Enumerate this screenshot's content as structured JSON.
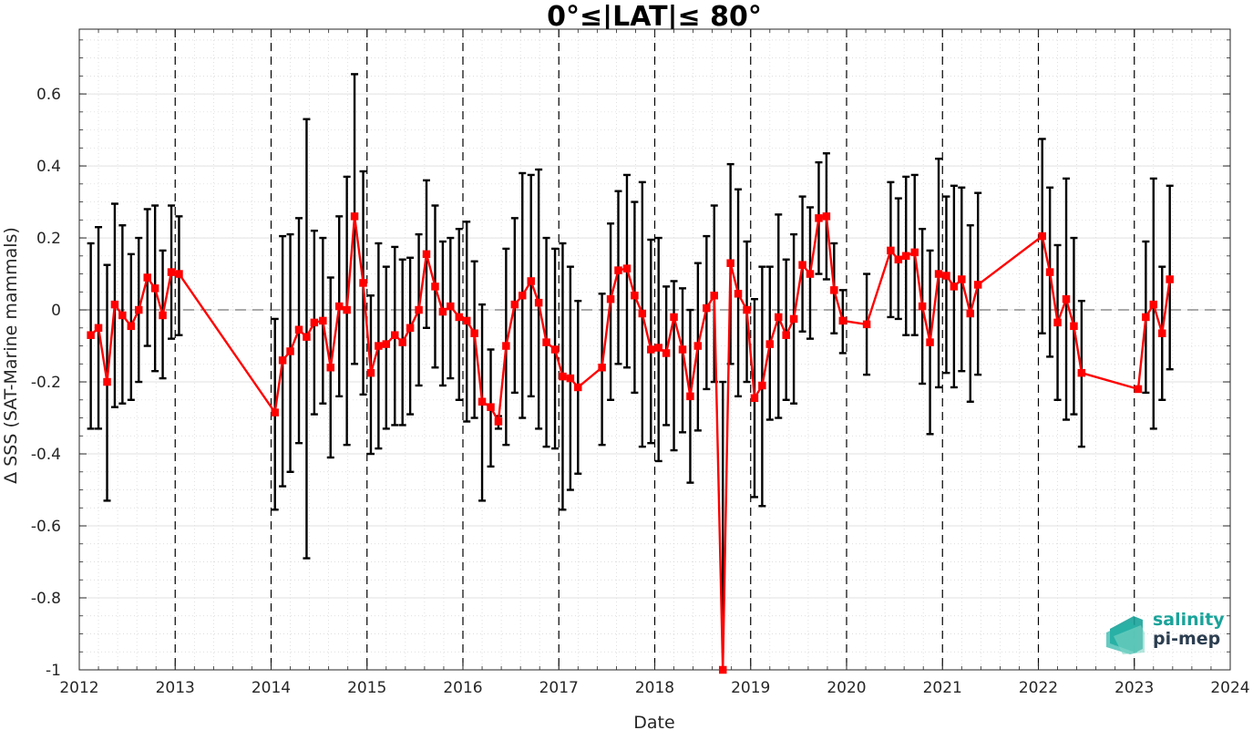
{
  "chart_data": {
    "type": "line",
    "title": "0°≤|LAT|≤ 80°",
    "xlabel": "Date",
    "ylabel": "Δ SSS (SAT-Marine mammals)",
    "xlim": [
      2012,
      2024
    ],
    "ylim": [
      -1,
      0.78
    ],
    "x_ticks": [
      2012,
      2013,
      2014,
      2015,
      2016,
      2017,
      2018,
      2019,
      2020,
      2021,
      2022,
      2023,
      2024
    ],
    "x_tick_labels": [
      "2012",
      "2013",
      "2014",
      "2015",
      "2016",
      "2017",
      "2018",
      "2019",
      "2020",
      "2021",
      "2022",
      "2023",
      "2024"
    ],
    "y_ticks": [
      -1,
      -0.8,
      -0.6,
      -0.4,
      -0.2,
      0,
      0.2,
      0.4,
      0.6
    ],
    "y_tick_labels": [
      "-1",
      "-0.8",
      "-0.6",
      "-0.4",
      "-0.2",
      "0",
      "0.2",
      "0.4",
      "0.6"
    ],
    "grid": true,
    "minor_grid": true,
    "zero_line": true,
    "year_boundary_lines": true,
    "series": [
      {
        "color": "#ff0000",
        "marker": "square",
        "errorbar_color": "#000000",
        "x": [
          2012.12,
          2012.2,
          2012.29,
          2012.37,
          2012.45,
          2012.54,
          2012.62,
          2012.71,
          2012.79,
          2012.87,
          2012.96,
          2013.04,
          2014.04,
          2014.12,
          2014.2,
          2014.29,
          2014.37,
          2014.45,
          2014.54,
          2014.62,
          2014.71,
          2014.79,
          2014.87,
          2014.96,
          2015.04,
          2015.12,
          2015.2,
          2015.29,
          2015.37,
          2015.45,
          2015.54,
          2015.62,
          2015.71,
          2015.79,
          2015.87,
          2015.96,
          2016.04,
          2016.12,
          2016.2,
          2016.29,
          2016.37,
          2016.45,
          2016.54,
          2016.62,
          2016.71,
          2016.79,
          2016.87,
          2016.96,
          2017.04,
          2017.12,
          2017.2,
          2017.45,
          2017.54,
          2017.62,
          2017.71,
          2017.79,
          2017.87,
          2017.96,
          2018.04,
          2018.12,
          2018.2,
          2018.29,
          2018.37,
          2018.45,
          2018.54,
          2018.62,
          2018.71,
          2018.79,
          2018.87,
          2018.96,
          2019.04,
          2019.12,
          2019.2,
          2019.29,
          2019.37,
          2019.45,
          2019.54,
          2019.62,
          2019.71,
          2019.79,
          2019.87,
          2019.96,
          2020.21,
          2020.46,
          2020.54,
          2020.62,
          2020.71,
          2020.79,
          2020.87,
          2020.96,
          2021.04,
          2021.12,
          2021.2,
          2021.29,
          2021.37,
          2022.04,
          2022.12,
          2022.2,
          2022.29,
          2022.37,
          2022.45,
          2023.04,
          2023.12,
          2023.2,
          2023.29,
          2023.37
        ],
        "y": [
          -0.07,
          -0.05,
          -0.2,
          0.015,
          -0.015,
          -0.045,
          0.0,
          0.09,
          0.06,
          -0.015,
          0.105,
          0.1,
          -0.285,
          -0.14,
          -0.115,
          -0.055,
          -0.075,
          -0.035,
          -0.03,
          -0.16,
          0.01,
          0.0,
          0.26,
          0.075,
          -0.175,
          -0.1,
          -0.095,
          -0.07,
          -0.09,
          -0.05,
          0.0,
          0.155,
          0.065,
          -0.005,
          0.01,
          -0.02,
          -0.03,
          -0.065,
          -0.255,
          -0.27,
          -0.31,
          -0.1,
          0.015,
          0.04,
          0.08,
          0.02,
          -0.09,
          -0.11,
          -0.185,
          -0.19,
          -0.215,
          -0.16,
          0.03,
          0.11,
          0.115,
          0.04,
          -0.01,
          -0.11,
          -0.105,
          -0.12,
          -0.02,
          -0.11,
          -0.24,
          -0.1,
          0.005,
          0.04,
          -1.0,
          0.13,
          0.045,
          0.0,
          -0.245,
          -0.21,
          -0.095,
          -0.02,
          -0.07,
          -0.025,
          0.125,
          0.1,
          0.255,
          0.26,
          0.055,
          -0.03,
          -0.04,
          0.165,
          0.14,
          0.15,
          0.16,
          0.01,
          -0.09,
          0.1,
          0.095,
          0.065,
          0.085,
          -0.01,
          0.07,
          0.205,
          0.105,
          -0.035,
          0.03,
          -0.045,
          -0.175,
          -0.22,
          -0.02,
          0.015,
          -0.065,
          0.085
        ],
        "err_low": [
          -0.33,
          -0.33,
          -0.53,
          -0.27,
          -0.26,
          -0.25,
          -0.2,
          -0.1,
          -0.17,
          -0.19,
          -0.08,
          -0.07,
          -0.555,
          -0.49,
          -0.45,
          -0.37,
          -0.69,
          -0.29,
          -0.26,
          -0.41,
          -0.24,
          -0.375,
          -0.15,
          -0.235,
          -0.4,
          -0.385,
          -0.33,
          -0.32,
          -0.32,
          -0.29,
          -0.21,
          -0.05,
          -0.16,
          -0.21,
          -0.19,
          -0.25,
          -0.31,
          -0.3,
          -0.53,
          -0.435,
          -0.33,
          -0.375,
          -0.23,
          -0.3,
          -0.24,
          -0.33,
          -0.38,
          -0.385,
          -0.555,
          -0.5,
          -0.455,
          -0.375,
          -0.25,
          -0.15,
          -0.16,
          -0.23,
          -0.38,
          -0.37,
          -0.42,
          -0.32,
          -0.39,
          -0.34,
          -0.48,
          -0.335,
          -0.22,
          -0.2,
          -1.0,
          -0.15,
          -0.24,
          -0.2,
          -0.52,
          -0.545,
          -0.305,
          -0.3,
          -0.25,
          -0.26,
          -0.06,
          -0.08,
          0.1,
          0.085,
          -0.065,
          -0.12,
          -0.18,
          -0.02,
          -0.025,
          -0.07,
          -0.07,
          -0.205,
          -0.345,
          -0.215,
          -0.175,
          -0.215,
          -0.17,
          -0.255,
          -0.18,
          -0.065,
          -0.13,
          -0.25,
          -0.305,
          -0.29,
          -0.38,
          -0.225,
          -0.23,
          -0.33,
          -0.25,
          -0.165
        ],
        "err_high": [
          0.185,
          0.23,
          0.125,
          0.295,
          0.235,
          0.155,
          0.2,
          0.28,
          0.29,
          0.165,
          0.29,
          0.26,
          -0.025,
          0.205,
          0.21,
          0.255,
          0.53,
          0.22,
          0.2,
          0.09,
          0.26,
          0.37,
          0.655,
          0.385,
          0.04,
          0.185,
          0.12,
          0.175,
          0.14,
          0.145,
          0.21,
          0.36,
          0.29,
          0.19,
          0.2,
          0.225,
          0.245,
          0.135,
          0.015,
          -0.11,
          -0.295,
          0.17,
          0.255,
          0.38,
          0.375,
          0.39,
          0.2,
          0.17,
          0.185,
          0.12,
          0.025,
          0.045,
          0.24,
          0.33,
          0.375,
          0.3,
          0.355,
          0.195,
          0.2,
          0.065,
          0.08,
          0.06,
          0.0,
          0.13,
          0.205,
          0.29,
          -0.2,
          0.405,
          0.335,
          0.19,
          0.03,
          0.12,
          0.12,
          0.265,
          0.14,
          0.21,
          0.315,
          0.285,
          0.41,
          0.435,
          0.185,
          0.055,
          0.1,
          0.355,
          0.31,
          0.37,
          0.375,
          0.225,
          0.165,
          0.42,
          0.315,
          0.345,
          0.34,
          0.235,
          0.325,
          0.475,
          0.34,
          0.18,
          0.365,
          0.2,
          0.025,
          -0.215,
          0.19,
          0.365,
          0.12,
          0.345
        ]
      }
    ]
  },
  "logo": {
    "line1": "salinity",
    "line2": "pi-mep",
    "color_primary": "#1aa39a",
    "color_secondary": "#2c3e50"
  }
}
